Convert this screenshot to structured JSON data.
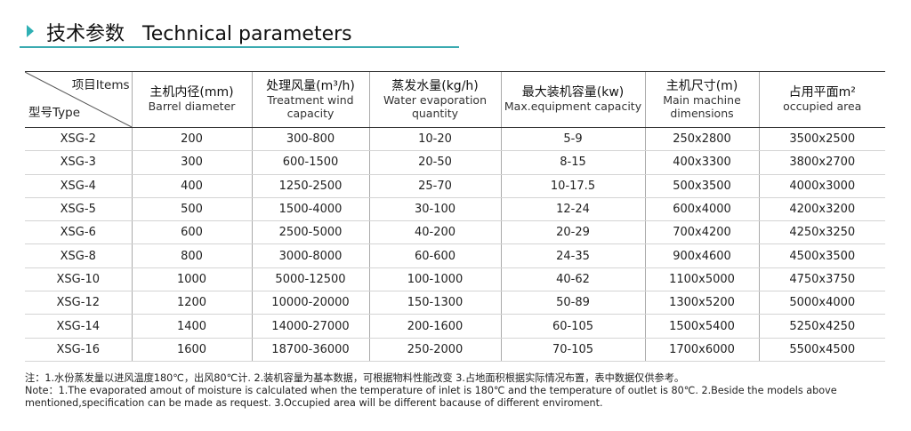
{
  "header": {
    "title_zh": "技术参数",
    "title_en": "Technical parameters"
  },
  "table": {
    "corner": {
      "top": "项目Items",
      "bottom": "型号Type"
    },
    "columns": [
      {
        "zh": "主机内径(mm)",
        "en": "Barrel diameter"
      },
      {
        "zh": "处理风量(m³/h)",
        "en": "Treatment wind capacity"
      },
      {
        "zh": "蒸发水量(kg/h)",
        "en": "Water evaporation quantity"
      },
      {
        "zh": "最大装机容量(kw)",
        "en": "Max.equipment capacity"
      },
      {
        "zh": "主机尺寸(m)",
        "en": "Main machine dimensions"
      },
      {
        "zh": "占用平面m²",
        "en": "occupied area"
      }
    ],
    "rows": [
      [
        "XSG-2",
        "200",
        "300-800",
        "10-20",
        "5-9",
        "250x2800",
        "3500x2500"
      ],
      [
        "XSG-3",
        "300",
        "600-1500",
        "20-50",
        "8-15",
        "400x3300",
        "3800x2700"
      ],
      [
        "XSG-4",
        "400",
        "1250-2500",
        "25-70",
        "10-17.5",
        "500x3500",
        "4000x3000"
      ],
      [
        "XSG-5",
        "500",
        "1500-4000",
        "30-100",
        "12-24",
        "600x4000",
        "4200x3200"
      ],
      [
        "XSG-6",
        "600",
        "2500-5000",
        "40-200",
        "20-29",
        "700x4200",
        "4250x3250"
      ],
      [
        "XSG-8",
        "800",
        "3000-8000",
        "60-600",
        "24-35",
        "900x4600",
        "4500x3500"
      ],
      [
        "XSG-10",
        "1000",
        "5000-12500",
        "100-1000",
        "40-62",
        "1100x5000",
        "4750x3750"
      ],
      [
        "XSG-12",
        "1200",
        "10000-20000",
        "150-1300",
        "50-89",
        "1300x5200",
        "5000x4000"
      ],
      [
        "XSG-14",
        "1400",
        "14000-27000",
        "200-1600",
        "60-105",
        "1500x5400",
        "5250x4250"
      ],
      [
        "XSG-16",
        "1600",
        "18700-36000",
        "250-2000",
        "70-105",
        "1700x6000",
        "5500x4500"
      ]
    ]
  },
  "notes": {
    "zh": "注：1.水份蒸发量以进风温度180℃，出风80℃计. 2.装机容量为基本数据，可根据物料性能改变 3.占地面积根据实际情况布置，表中数据仅供参考。",
    "en": "Note：1.The evaporated amout of moisture is calculated when the temperature of inlet is 180℃ and the temperature of outlet is 80℃. 2.Beside the models above mentioned,specification can be made as request. 3.Occupied area will be different bacause of different enviroment."
  }
}
